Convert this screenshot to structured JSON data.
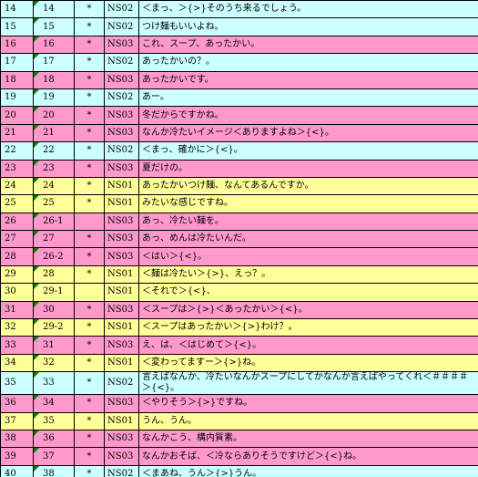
{
  "table": {
    "rows": [
      {
        "row": "14",
        "id": "14",
        "mark": "*",
        "speaker": "NS02",
        "text": "＜まっ、＞{>}そのうち来るでしょう。",
        "color": "#ccffff"
      },
      {
        "row": "15",
        "id": "15",
        "mark": "*",
        "speaker": "NS02",
        "text": "つけ麺もいいよね。",
        "color": "#ccffff"
      },
      {
        "row": "16",
        "id": "16",
        "mark": "*",
        "speaker": "NS03",
        "text": "これ、スープ、あったかい。",
        "color": "#ff99cc"
      },
      {
        "row": "17",
        "id": "17",
        "mark": "*",
        "speaker": "NS02",
        "text": "あったかいの？。",
        "color": "#ccffff"
      },
      {
        "row": "18",
        "id": "18",
        "mark": "*",
        "speaker": "NS03",
        "text": "あったかいです。",
        "color": "#ff99cc"
      },
      {
        "row": "19",
        "id": "19",
        "mark": "*",
        "speaker": "NS02",
        "text": "あー。",
        "color": "#ccffff"
      },
      {
        "row": "20",
        "id": "20",
        "mark": "*",
        "speaker": "NS03",
        "text": "冬だからですかね。",
        "color": "#ff99cc"
      },
      {
        "row": "21",
        "id": "21",
        "mark": "*",
        "speaker": "NS03",
        "text": "なんか冷たいイメージ＜ありますよね＞{<}。",
        "color": "#ff99cc"
      },
      {
        "row": "22",
        "id": "22",
        "mark": "*",
        "speaker": "NS02",
        "text": "＜まっ、確かに＞{<}。",
        "color": "#ccffff"
      },
      {
        "row": "23",
        "id": "23",
        "mark": "*",
        "speaker": "NS03",
        "text": "夏だけの。",
        "color": "#ff99cc"
      },
      {
        "row": "24",
        "id": "24",
        "mark": "*",
        "speaker": "NS01",
        "text": "あったかいつけ麺、なんてあるんですか。",
        "color": "#ffff99"
      },
      {
        "row": "25",
        "id": "25",
        "mark": "*",
        "speaker": "NS01",
        "text": "みたいな感じですね。",
        "color": "#ffff99"
      },
      {
        "row": "26",
        "id": "26-1",
        "mark": null,
        "speaker": "NS03",
        "text": "あっ、冷たい麺を。",
        "color": "#ff99cc"
      },
      {
        "row": "27",
        "id": "27",
        "mark": "*",
        "speaker": "NS03",
        "text": "あっ、めんは冷たいんだ。",
        "color": "#ff99cc"
      },
      {
        "row": "28",
        "id": "26-2",
        "mark": "*",
        "speaker": "NS03",
        "text": "＜はい＞{<}。",
        "color": "#ff99cc"
      },
      {
        "row": "29",
        "id": "28",
        "mark": "*",
        "speaker": "NS01",
        "text": "＜麺は冷たい＞{>}、えっ？。",
        "color": "#ffff99"
      },
      {
        "row": "30",
        "id": "29-1",
        "mark": null,
        "speaker": "NS01",
        "text": "＜それで＞{<}、",
        "color": "#ffff99"
      },
      {
        "row": "31",
        "id": "30",
        "mark": "*",
        "speaker": "NS03",
        "text": "＜スープは＞{>}＜あったかい＞{<}。",
        "color": "#ff99cc"
      },
      {
        "row": "32",
        "id": "29-2",
        "mark": "*",
        "speaker": "NS01",
        "text": "＜スープはあったかい＞{>}わけ？。",
        "color": "#ffff99"
      },
      {
        "row": "33",
        "id": "31",
        "mark": "*",
        "speaker": "NS03",
        "text": "え、は、＜はじめて＞{<}。",
        "color": "#ff99cc"
      },
      {
        "row": "34",
        "id": "32",
        "mark": "*",
        "speaker": "NS01",
        "text": "＜変わってますー＞{>}ね。",
        "color": "#ffff99"
      },
      {
        "row": "35",
        "id": "33",
        "mark": "*",
        "speaker": "NS02",
        "text": "言えばなんか、冷たいなんかスープにしてかなんか言えばやってくれ＜＃＃＃＃＞{<}。",
        "color": "#ccffff"
      },
      {
        "row": "36",
        "id": "34",
        "mark": "*",
        "speaker": "NS03",
        "text": "＜やりそう＞{>}ですね。",
        "color": "#ff99cc"
      },
      {
        "row": "37",
        "id": "35",
        "mark": "*",
        "speaker": "NS01",
        "text": "うん、うん。",
        "color": "#ffff99"
      },
      {
        "row": "38",
        "id": "36",
        "mark": "*",
        "speaker": "NS03",
        "text": "なんかこう、構内質素。",
        "color": "#ff99cc"
      },
      {
        "row": "39",
        "id": "37",
        "mark": "*",
        "speaker": "NS03",
        "text": "なんかおそば、＜冷ならありそうですけど＞{<}ね。",
        "color": "#ff99cc"
      },
      {
        "row": "40",
        "id": "38",
        "mark": "*",
        "speaker": "NS02",
        "text": "＜まあね、うん＞{>}うん。",
        "color": "#ccffff"
      }
    ]
  }
}
